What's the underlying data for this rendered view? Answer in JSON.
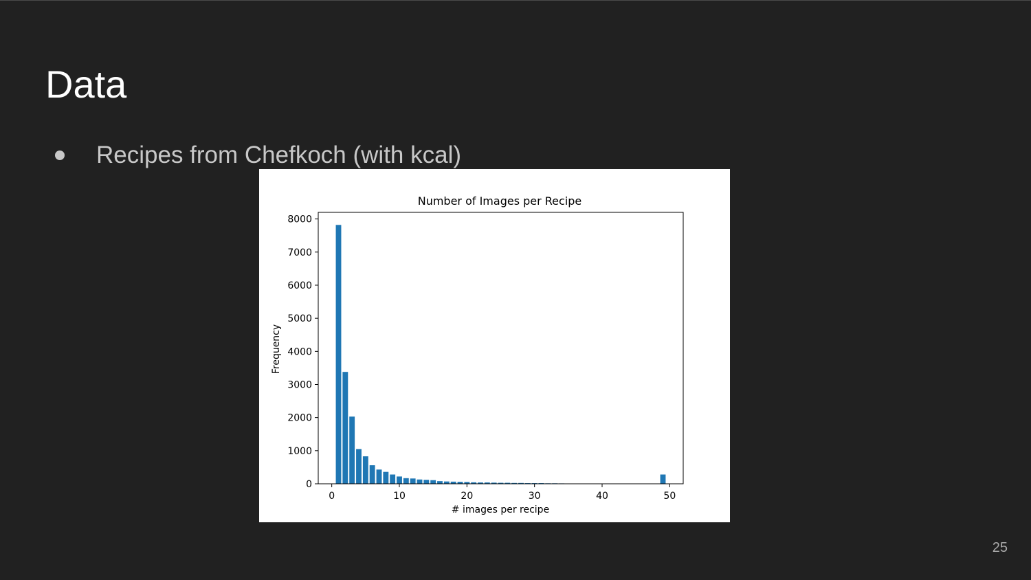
{
  "slide": {
    "title": "Data",
    "bullets": [
      "Recipes from Chefkoch (with kcal)"
    ],
    "page_number": "25"
  },
  "colors": {
    "background": "#212121",
    "bar": "#1f77b4",
    "title_text": "#ffffff",
    "bullet_text": "#c8c8c8"
  },
  "chart_data": {
    "type": "bar",
    "title": "Number of Images per Recipe",
    "xlabel": "# images per recipe",
    "ylabel": "Frequency",
    "xlim": [
      -2,
      52
    ],
    "ylim": [
      0,
      8200
    ],
    "xticks": [
      0,
      10,
      20,
      30,
      40,
      50
    ],
    "yticks": [
      0,
      1000,
      2000,
      3000,
      4000,
      5000,
      6000,
      7000,
      8000
    ],
    "grid": false,
    "x": [
      1,
      2,
      3,
      4,
      5,
      6,
      7,
      8,
      9,
      10,
      11,
      12,
      13,
      14,
      15,
      16,
      17,
      18,
      19,
      20,
      21,
      22,
      23,
      24,
      25,
      26,
      27,
      28,
      29,
      30,
      31,
      32,
      33,
      34,
      37,
      41,
      43,
      49
    ],
    "values": [
      7820,
      3380,
      2030,
      1050,
      830,
      560,
      430,
      360,
      280,
      220,
      170,
      160,
      130,
      120,
      110,
      80,
      70,
      65,
      60,
      55,
      45,
      40,
      40,
      35,
      30,
      30,
      25,
      25,
      20,
      20,
      20,
      15,
      15,
      12,
      10,
      8,
      8,
      280
    ]
  }
}
